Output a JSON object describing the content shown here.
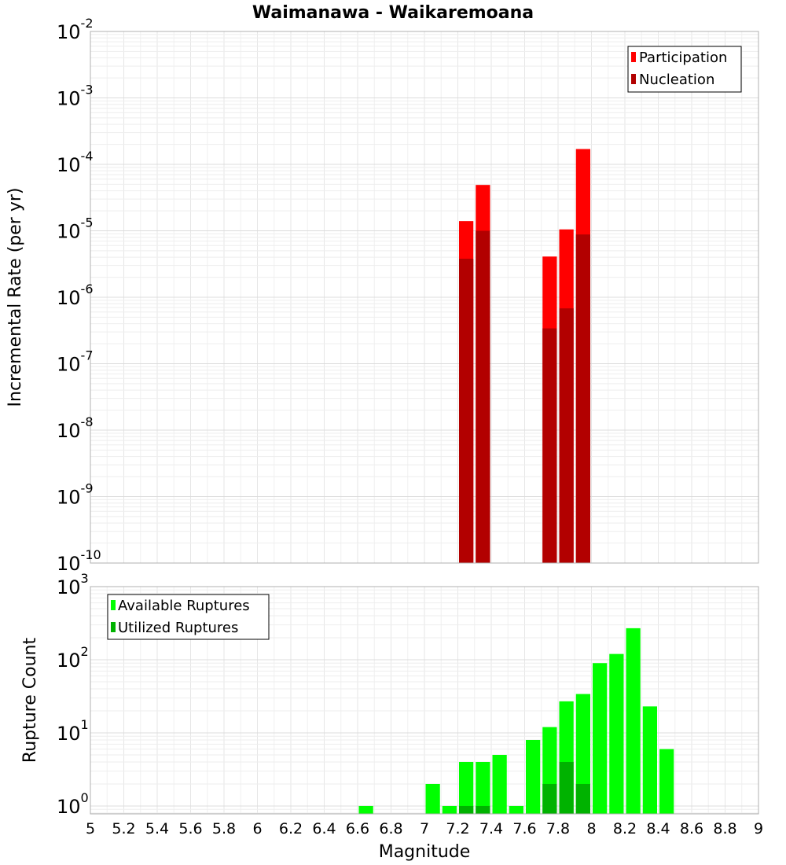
{
  "chart_data": [
    {
      "type": "bar",
      "title": "Waimanawa - Waikaremoana",
      "xlabel": "Magnitude",
      "ylabel": "Incremental Rate (per yr)",
      "yscale": "log",
      "ylim": [
        1e-10,
        0.01
      ],
      "xlim": [
        5,
        9
      ],
      "bin_width": 0.1,
      "legend_position": "top-right",
      "y_tick_exponents": [
        "-10",
        "-9",
        "-8",
        "-7",
        "-6",
        "-5",
        "-4",
        "-3",
        "-2"
      ],
      "series": [
        {
          "name": "Participation",
          "color": "#ff0000",
          "x": [
            7.25,
            7.35,
            7.75,
            7.85,
            7.95
          ],
          "values": [
            1.4e-05,
            4.9e-05,
            4.1e-06,
            1.05e-05,
            0.00017
          ]
        },
        {
          "name": "Nucleation",
          "color": "#b20000",
          "x": [
            7.25,
            7.35,
            7.75,
            7.85,
            7.95
          ],
          "values": [
            3.8e-06,
            1e-05,
            3.4e-07,
            6.8e-07,
            8.8e-06
          ]
        }
      ]
    },
    {
      "type": "bar",
      "title": "",
      "xlabel": "Magnitude",
      "ylabel": "Rupture Count",
      "yscale": "log",
      "ylim": [
        0.78,
        1000
      ],
      "xlim": [
        5,
        9
      ],
      "bin_width": 0.1,
      "legend_position": "top-left",
      "y_tick_exponents": [
        "0",
        "1",
        "2",
        "3"
      ],
      "x_tick_labels": [
        "5",
        "5.2",
        "5.4",
        "5.6",
        "5.8",
        "6",
        "6.2",
        "6.4",
        "6.6",
        "6.8",
        "7",
        "7.2",
        "7.4",
        "7.6",
        "7.8",
        "8",
        "8.2",
        "8.4",
        "8.6",
        "8.8",
        "9"
      ],
      "series": [
        {
          "name": "Available Ruptures",
          "color": "#00ff00",
          "x": [
            6.65,
            7.05,
            7.15,
            7.25,
            7.35,
            7.45,
            7.55,
            7.65,
            7.75,
            7.85,
            7.95,
            8.05,
            8.15,
            8.25,
            8.35,
            8.45
          ],
          "values": [
            1,
            2,
            1,
            4,
            4,
            5,
            1,
            8,
            12,
            27,
            34,
            90,
            120,
            270,
            23,
            6
          ]
        },
        {
          "name": "Utilized Ruptures",
          "color": "#00b200",
          "x": [
            7.25,
            7.35,
            7.75,
            7.85,
            7.95
          ],
          "values": [
            1,
            1,
            2,
            4,
            2
          ]
        }
      ]
    }
  ]
}
